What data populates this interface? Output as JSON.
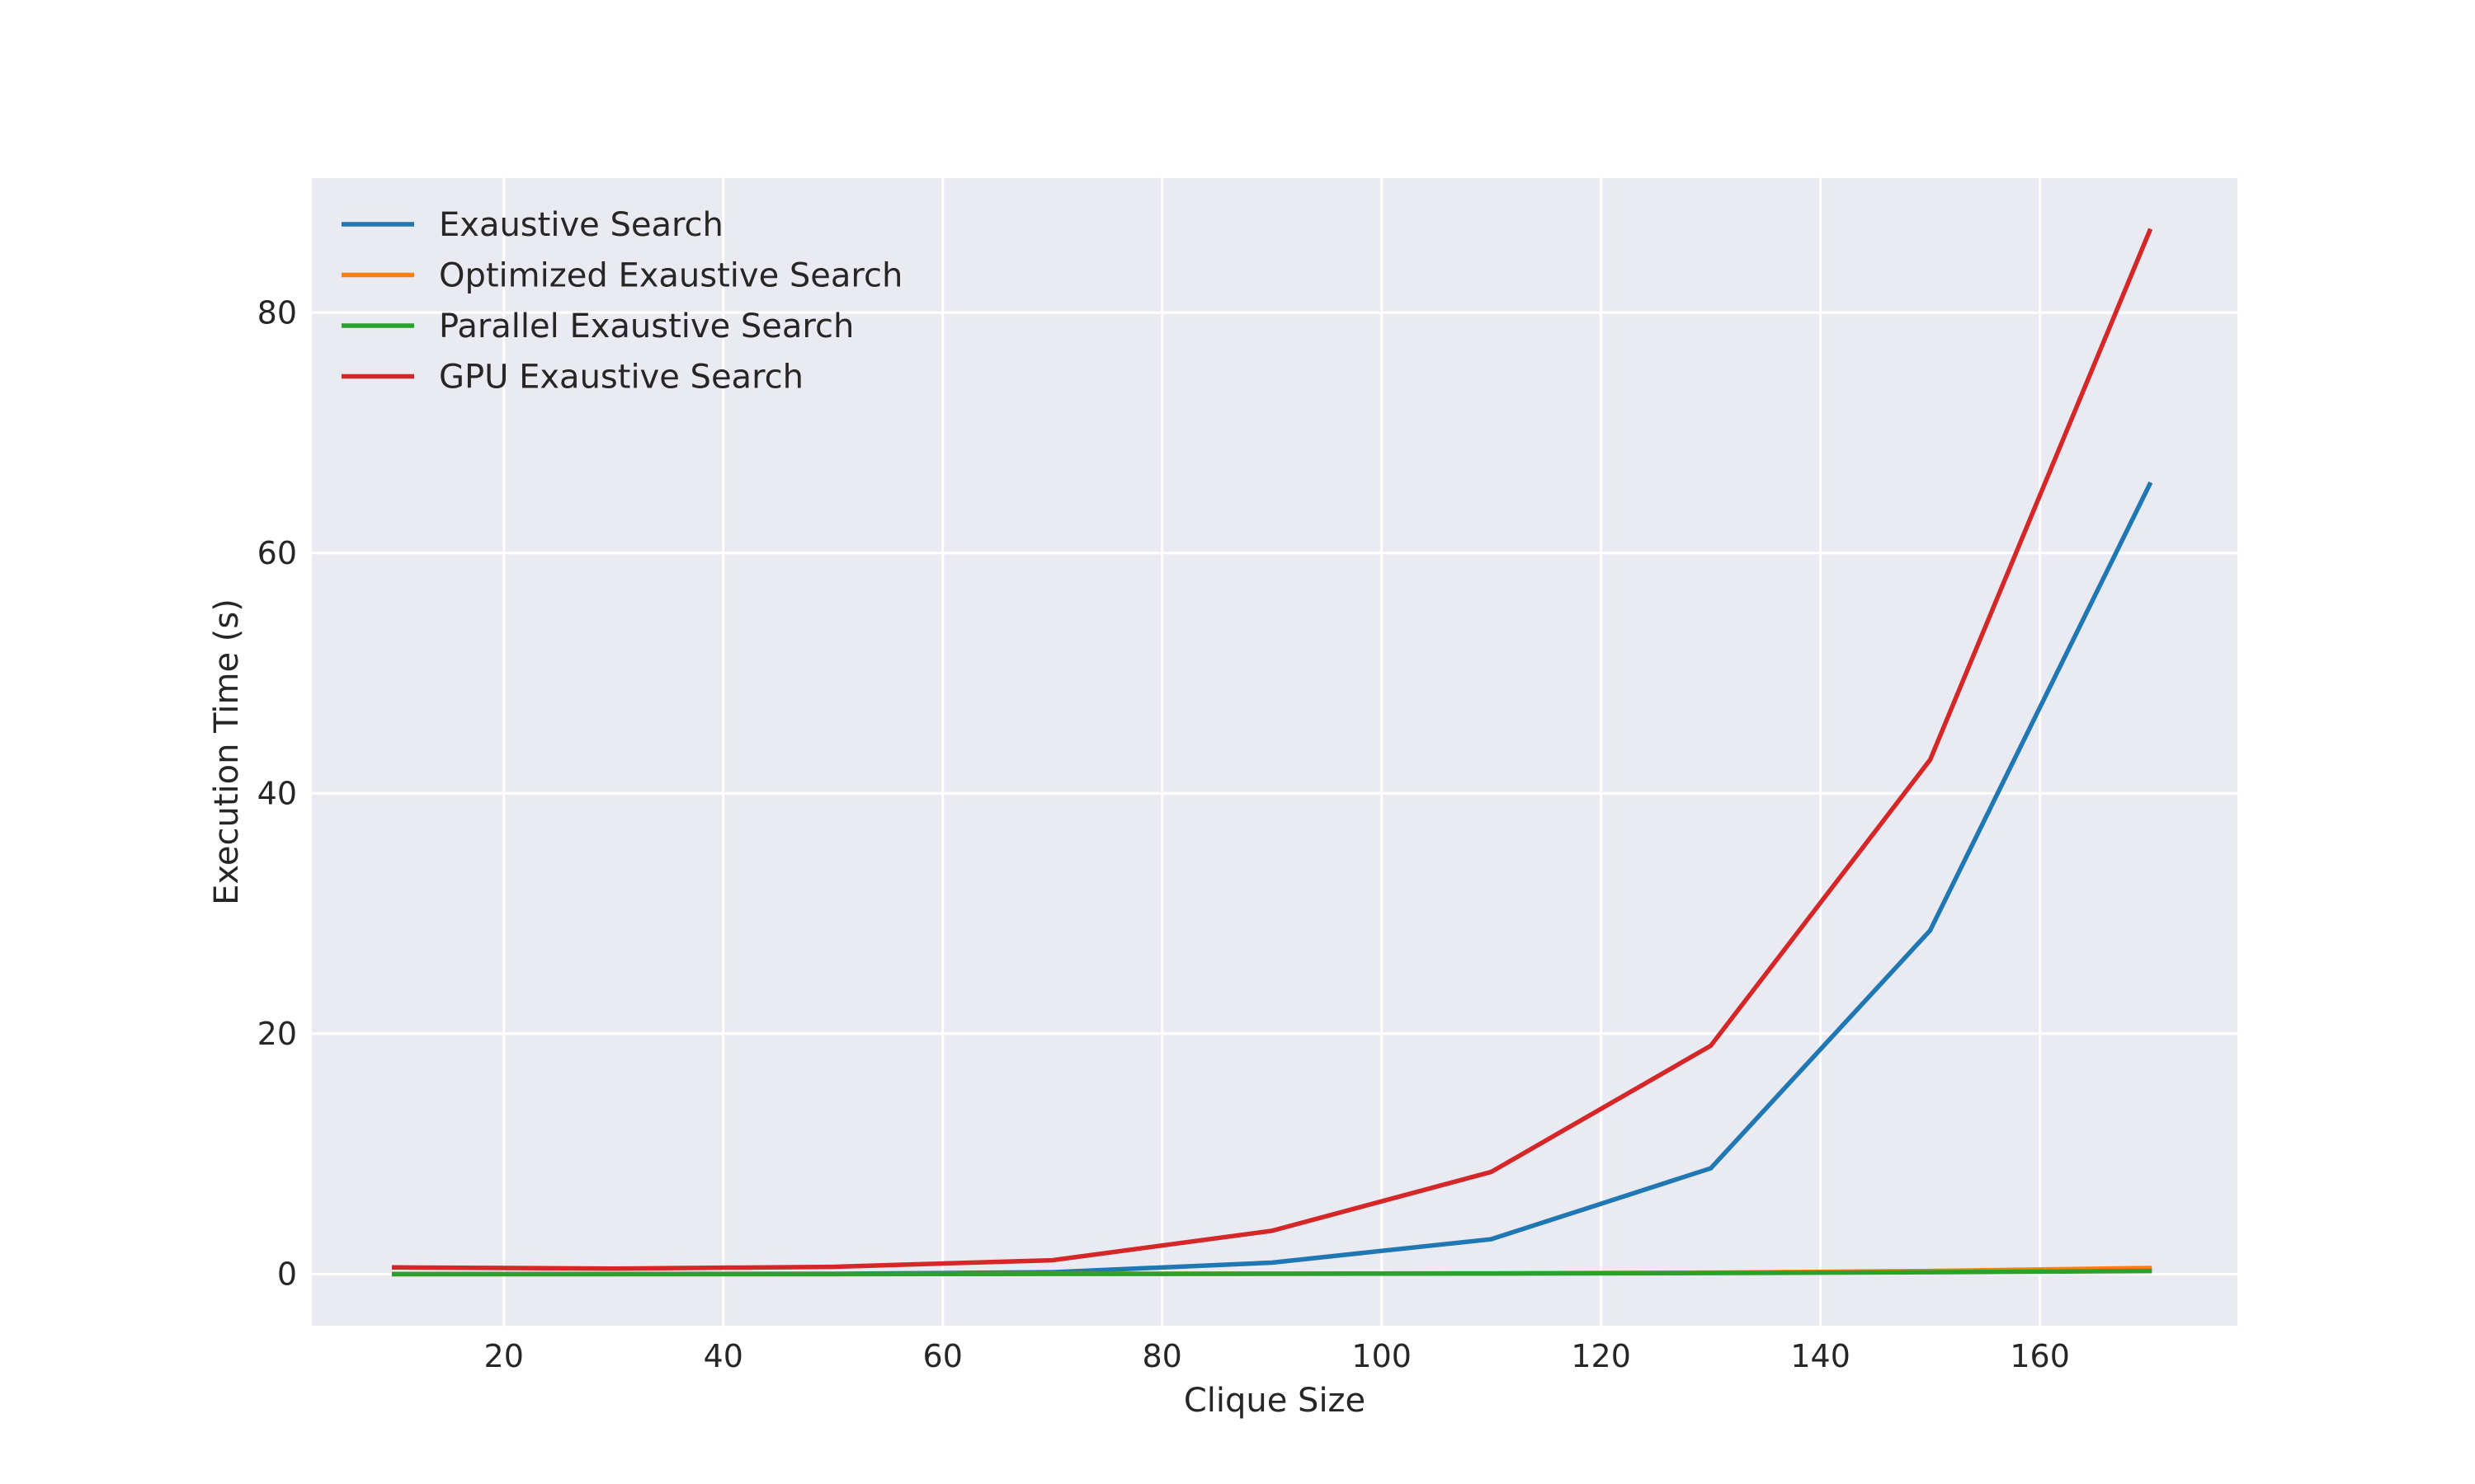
{
  "chart_data": {
    "type": "line",
    "title": "",
    "xlabel": "Clique Size",
    "ylabel": "Execution Time (s)",
    "xlim": [
      2.5,
      178
    ],
    "ylim": [
      -4.3,
      91.2
    ],
    "x_ticks": [
      20,
      40,
      60,
      80,
      100,
      120,
      140,
      160
    ],
    "y_ticks": [
      0,
      20,
      40,
      60,
      80
    ],
    "grid": true,
    "legend_position": "top-left",
    "x": [
      10,
      30,
      50,
      70,
      90,
      110,
      130,
      150,
      170
    ],
    "series": [
      {
        "name": "Exaustive Search",
        "color": "#1f77b4",
        "values": [
          0.0,
          0.0,
          0.02,
          0.15,
          0.95,
          2.9,
          8.8,
          28.6,
          65.7
        ]
      },
      {
        "name": "Optimized Exaustive Search",
        "color": "#ff7f0e",
        "values": [
          0.0,
          0.0,
          0.0,
          0.02,
          0.03,
          0.06,
          0.12,
          0.25,
          0.5
        ]
      },
      {
        "name": "Parallel Exaustive Search",
        "color": "#2ca02c",
        "values": [
          0.0,
          0.0,
          0.0,
          0.01,
          0.02,
          0.04,
          0.08,
          0.15,
          0.25
        ]
      },
      {
        "name": "GPU Exaustive Search",
        "color": "#d62728",
        "values": [
          0.55,
          0.45,
          0.6,
          1.15,
          3.6,
          8.5,
          19.0,
          42.8,
          86.8
        ]
      }
    ]
  },
  "style": {
    "plot_background": "#eaeaf2",
    "grid_color": "#ffffff",
    "text_color": "#262626"
  }
}
